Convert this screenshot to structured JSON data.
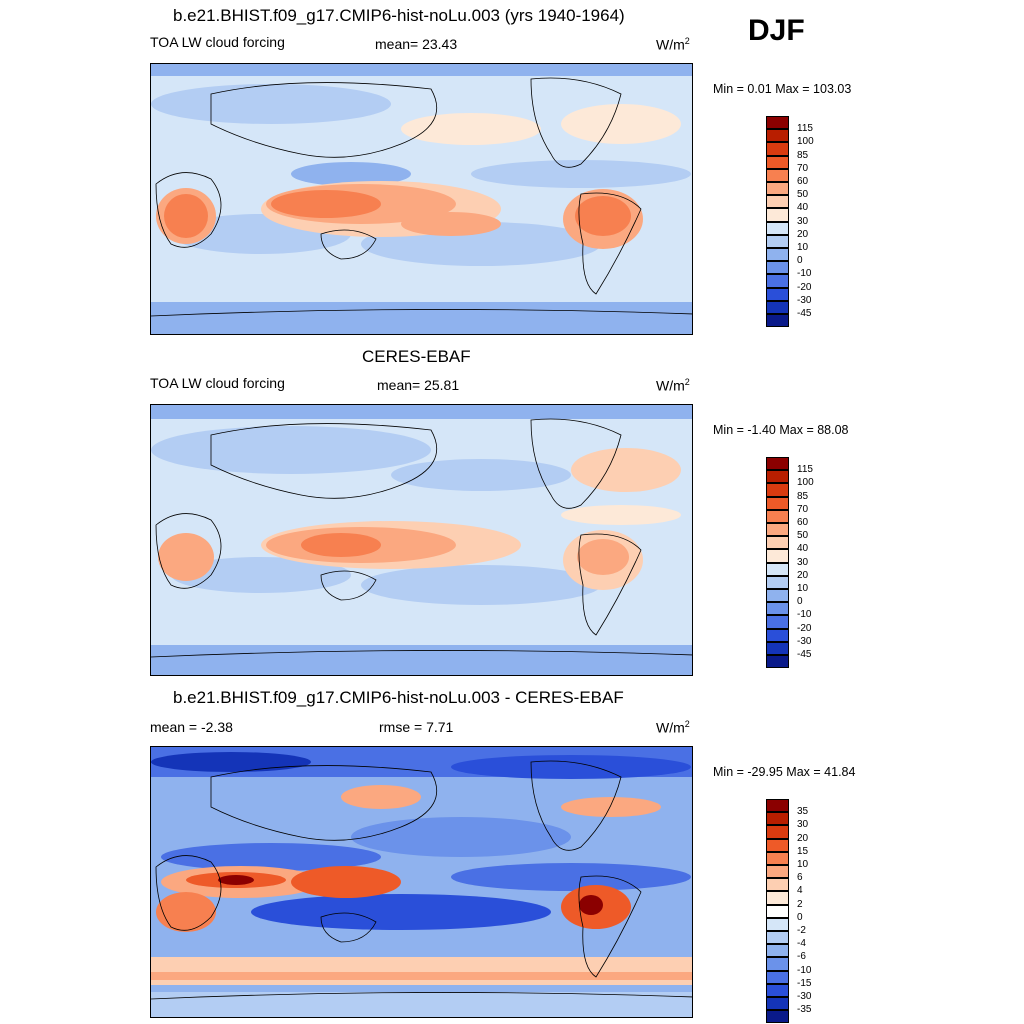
{
  "season": "DJF",
  "panels": [
    {
      "title": "b.e21.BHIST.f09_g17.CMIP6-hist-noLu.003 (yrs 1940-1964)",
      "left": "TOA LW cloud forcing",
      "center": "mean=  23.43",
      "units": "W/m",
      "units_sup": "2",
      "minmax": "Min =   0.01 Max = 103.03",
      "colorbar_labels": [
        "115",
        "100",
        "85",
        "70",
        "60",
        "50",
        "40",
        "30",
        "20",
        "10",
        "0",
        "-10",
        "-20",
        "-30",
        "-45"
      ],
      "colorbar_colors": [
        "#8b0000",
        "#b81e00",
        "#d93b10",
        "#ee5a28",
        "#f78050",
        "#fba880",
        "#fdcfb2",
        "#fde9d8",
        "#d5e6f8",
        "#b3cdf3",
        "#8fb2ee",
        "#6b92ea",
        "#4a70e4",
        "#2a4fd9",
        "#1434b8",
        "#0a1a8a"
      ]
    },
    {
      "title": "CERES-EBAF",
      "left": "TOA LW cloud forcing",
      "center": "mean=  25.81",
      "units": "W/m",
      "units_sup": "2",
      "minmax": "Min =  -1.40 Max =  88.08",
      "colorbar_labels": [
        "115",
        "100",
        "85",
        "70",
        "60",
        "50",
        "40",
        "30",
        "20",
        "10",
        "0",
        "-10",
        "-20",
        "-30",
        "-45"
      ],
      "colorbar_colors": [
        "#8b0000",
        "#b81e00",
        "#d93b10",
        "#ee5a28",
        "#f78050",
        "#fba880",
        "#fdcfb2",
        "#fde9d8",
        "#d5e6f8",
        "#b3cdf3",
        "#8fb2ee",
        "#6b92ea",
        "#4a70e4",
        "#2a4fd9",
        "#1434b8",
        "#0a1a8a"
      ]
    },
    {
      "title": "b.e21.BHIST.f09_g17.CMIP6-hist-noLu.003 - CERES-EBAF",
      "left": "mean =  -2.38",
      "center": "rmse =   7.71",
      "units": "W/m",
      "units_sup": "2",
      "minmax": "Min = -29.95 Max =  41.84",
      "colorbar_labels": [
        "35",
        "30",
        "20",
        "15",
        "10",
        "6",
        "4",
        "2",
        "0",
        "-2",
        "-4",
        "-6",
        "-10",
        "-15",
        "-30",
        "-35"
      ],
      "colorbar_colors": [
        "#8b0000",
        "#b81e00",
        "#d93b10",
        "#ee5a28",
        "#f78050",
        "#fba880",
        "#fdcfb2",
        "#fde9d8",
        "#ffffff",
        "#d5e6f8",
        "#b3cdf3",
        "#8fb2ee",
        "#6b92ea",
        "#4a70e4",
        "#2a4fd9",
        "#1434b8",
        "#0a1a8a"
      ]
    }
  ]
}
